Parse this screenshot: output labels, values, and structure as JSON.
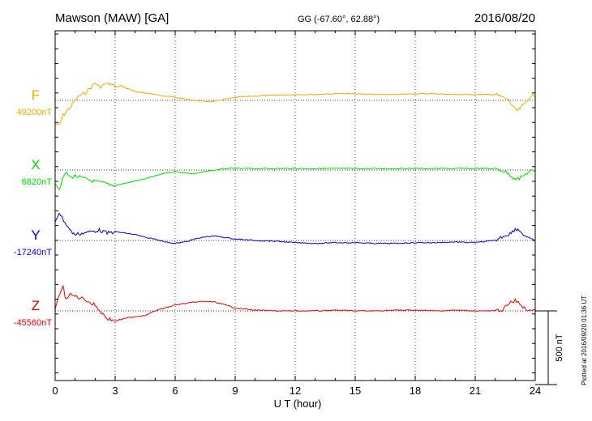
{
  "header": {
    "station": "Mawson (MAW)  [GA]",
    "coords": "GG (-67.60°,  62.88°)",
    "date": "2016/08/20"
  },
  "side_note": "Plotted at 2016/09/20 01:36 UT",
  "scale_label": "500 nT",
  "colors": {
    "F": "#f5a800",
    "X": "#00dd00",
    "Y": "#0000dd",
    "Z": "#ee0000",
    "axis": "#000000"
  },
  "chart_data": {
    "type": "line",
    "xlabel": "U T (hour)",
    "xlim": [
      0,
      24
    ],
    "xticks": [
      "0",
      "3",
      "6",
      "9",
      "12",
      "15",
      "18",
      "21",
      "24"
    ],
    "scale_bar_nT": 500,
    "series": [
      {
        "key": "F",
        "name": "F",
        "baseline_label": "49200nT",
        "baseline_nT": 49200,
        "x": [
          0,
          0.2,
          0.4,
          0.6,
          0.8,
          1.0,
          1.2,
          1.5,
          1.8,
          2.0,
          2.2,
          2.5,
          2.8,
          3.0,
          3.3,
          3.6,
          4.0,
          4.5,
          5.0,
          5.5,
          6.0,
          6.5,
          7.0,
          7.5,
          7.8,
          8.2,
          8.6,
          9.0,
          9.5,
          10,
          11,
          12,
          13,
          14,
          15,
          16,
          17,
          18,
          19,
          20,
          21,
          22,
          22.4,
          22.7,
          22.9,
          23.1,
          23.3,
          23.6,
          23.9,
          24
        ],
        "y": [
          49040,
          49030,
          49100,
          49130,
          49160,
          49200,
          49230,
          49250,
          49290,
          49320,
          49290,
          49310,
          49310,
          49290,
          49300,
          49280,
          49260,
          49250,
          49240,
          49230,
          49220,
          49210,
          49200,
          49195,
          49190,
          49200,
          49210,
          49220,
          49225,
          49230,
          49235,
          49240,
          49240,
          49245,
          49245,
          49240,
          49240,
          49245,
          49245,
          49240,
          49240,
          49240,
          49220,
          49200,
          49150,
          49130,
          49150,
          49200,
          49240,
          49220
        ]
      },
      {
        "key": "X",
        "name": "X",
        "baseline_label": "6820nT",
        "baseline_nT": 6820,
        "x": [
          0,
          0.2,
          0.5,
          0.8,
          1.0,
          1.5,
          2.0,
          2.5,
          3.0,
          3.5,
          4.0,
          4.5,
          5.0,
          5.5,
          6.0,
          6.5,
          7.0,
          7.5,
          8.0,
          8.5,
          9.0,
          10,
          11,
          12,
          13,
          14,
          15,
          16,
          17,
          18,
          19,
          20,
          21,
          22,
          22.3,
          22.6,
          22.9,
          23.2,
          23.5,
          23.8,
          24
        ],
        "y": [
          6740,
          6690,
          6800,
          6770,
          6780,
          6760,
          6740,
          6730,
          6715,
          6730,
          6745,
          6760,
          6780,
          6800,
          6810,
          6800,
          6795,
          6810,
          6820,
          6830,
          6830,
          6830,
          6830,
          6830,
          6830,
          6830,
          6830,
          6830,
          6830,
          6830,
          6830,
          6830,
          6830,
          6830,
          6820,
          6800,
          6770,
          6760,
          6790,
          6820,
          6810
        ]
      },
      {
        "key": "Y",
        "name": "Y",
        "baseline_label": "-17240nT",
        "baseline_nT": -17240,
        "x": [
          0,
          0.2,
          0.5,
          0.8,
          1.0,
          1.4,
          1.8,
          2.2,
          2.6,
          3.0,
          3.5,
          4.0,
          4.5,
          5.0,
          5.5,
          6.0,
          6.5,
          7.0,
          7.5,
          8.0,
          8.5,
          9.0,
          10,
          11,
          12,
          13,
          14,
          15,
          16,
          17,
          18,
          19,
          20,
          21,
          22,
          22.4,
          22.8,
          23.0,
          23.2,
          23.5,
          23.8,
          24
        ],
        "y": [
          -17110,
          -17050,
          -17120,
          -17180,
          -17200,
          -17190,
          -17180,
          -17170,
          -17190,
          -17180,
          -17190,
          -17200,
          -17220,
          -17230,
          -17250,
          -17260,
          -17250,
          -17230,
          -17215,
          -17210,
          -17220,
          -17230,
          -17240,
          -17245,
          -17255,
          -17260,
          -17255,
          -17255,
          -17260,
          -17260,
          -17255,
          -17255,
          -17250,
          -17255,
          -17240,
          -17210,
          -17190,
          -17160,
          -17170,
          -17210,
          -17230,
          -17240
        ]
      },
      {
        "key": "Z",
        "name": "Z",
        "baseline_label": "-45560nT",
        "baseline_nT": -45560,
        "x": [
          0,
          0.2,
          0.4,
          0.5,
          0.7,
          1.0,
          1.2,
          1.5,
          1.8,
          2.0,
          2.3,
          2.6,
          3.0,
          3.5,
          4.0,
          4.5,
          5.0,
          5.5,
          6.0,
          6.5,
          7.0,
          7.5,
          8.0,
          8.5,
          9.0,
          10,
          11,
          12,
          13,
          14,
          15,
          16,
          17,
          18,
          19,
          20,
          21,
          22,
          22.4,
          22.7,
          23.0,
          23.3,
          23.6,
          24
        ],
        "y": [
          -45560,
          -45450,
          -45390,
          -45480,
          -45450,
          -45460,
          -45470,
          -45480,
          -45510,
          -45520,
          -45570,
          -45610,
          -45630,
          -45610,
          -45600,
          -45590,
          -45560,
          -45540,
          -45520,
          -45510,
          -45500,
          -45495,
          -45500,
          -45520,
          -45540,
          -45555,
          -45560,
          -45560,
          -45560,
          -45555,
          -45560,
          -45560,
          -45555,
          -45555,
          -45560,
          -45555,
          -45560,
          -45560,
          -45550,
          -45510,
          -45490,
          -45520,
          -45560,
          -45550
        ]
      }
    ]
  }
}
